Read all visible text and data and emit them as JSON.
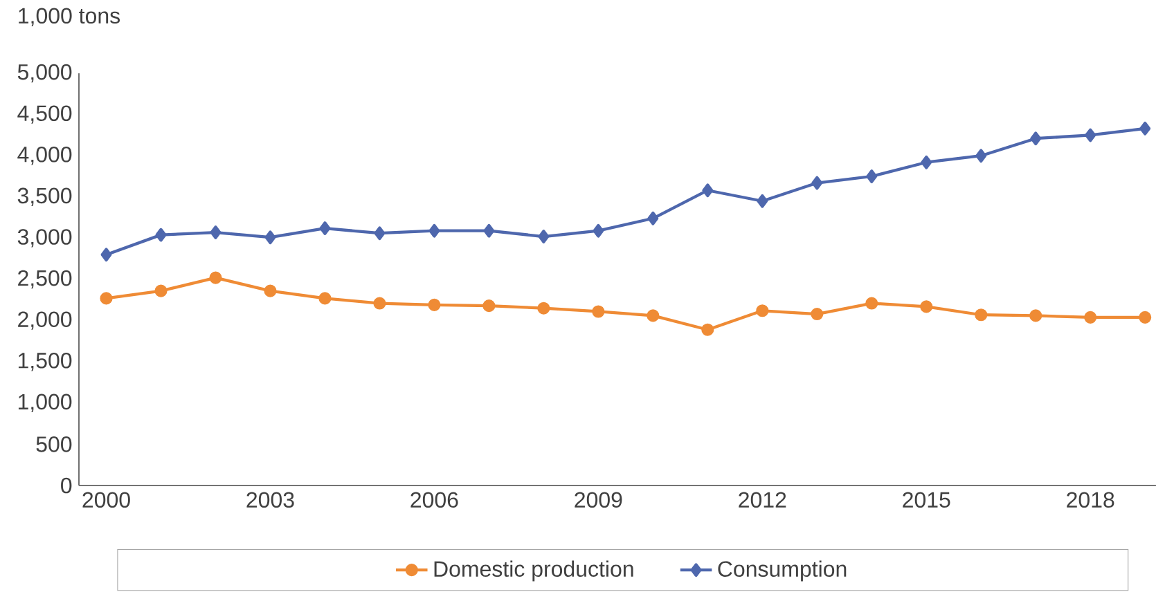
{
  "chart_data": {
    "type": "line",
    "ylabel": "1,000 tons",
    "x": [
      2000,
      2001,
      2002,
      2003,
      2004,
      2005,
      2006,
      2007,
      2008,
      2009,
      2010,
      2011,
      2012,
      2013,
      2014,
      2015,
      2016,
      2017,
      2018,
      2019
    ],
    "series": [
      {
        "name": "Domestic production",
        "color": "#ef8b35",
        "marker": "circle",
        "values": [
          2270,
          2360,
          2520,
          2360,
          2270,
          2210,
          2190,
          2180,
          2150,
          2110,
          2060,
          1890,
          2120,
          2080,
          2210,
          2170,
          2070,
          2060,
          2040,
          2040
        ]
      },
      {
        "name": "Consumption",
        "color": "#4e67ad",
        "marker": "diamond",
        "values": [
          2800,
          3040,
          3070,
          3010,
          3120,
          3060,
          3090,
          3090,
          3020,
          3090,
          3240,
          3580,
          3450,
          3670,
          3750,
          3920,
          4000,
          4210,
          4250,
          4330
        ]
      }
    ],
    "xlim": [
      1999.5,
      2019.2
    ],
    "ylim": [
      0,
      5000
    ],
    "xticks": [
      2000,
      2003,
      2006,
      2009,
      2012,
      2015,
      2018
    ],
    "yticks": [
      {
        "value": 0,
        "label": "0"
      },
      {
        "value": 500,
        "label": "500"
      },
      {
        "value": 1000,
        "label": "1,000"
      },
      {
        "value": 1500,
        "label": "1,500"
      },
      {
        "value": 2000,
        "label": "2,000"
      },
      {
        "value": 2500,
        "label": "2,500"
      },
      {
        "value": 3000,
        "label": "3,000"
      },
      {
        "value": 3500,
        "label": "3,500"
      },
      {
        "value": 4000,
        "label": "4,000"
      },
      {
        "value": 4500,
        "label": "4,500"
      },
      {
        "value": 5000,
        "label": "5,000"
      }
    ],
    "legend": "bottom",
    "grid": false,
    "line_style": "solid"
  }
}
